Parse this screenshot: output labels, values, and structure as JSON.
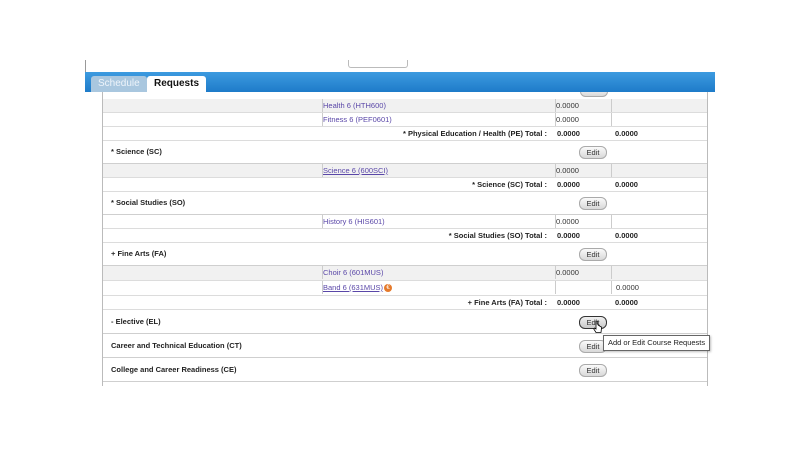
{
  "tabs": [
    {
      "label": "Schedule",
      "active": false
    },
    {
      "label": "Requests",
      "active": true
    }
  ],
  "pe_section": {
    "courses": [
      {
        "name": "Health 6 (HTH600)",
        "col1": "0.0000",
        "col2": ""
      },
      {
        "name": "Fitness 6 (PEF0601)",
        "col1": "0.0000",
        "col2": ""
      }
    ],
    "total_label": "* Physical Education / Health (PE) Total :",
    "total_col1": "0.0000",
    "total_col2": "0.0000"
  },
  "science_section": {
    "title": "* Science (SC)",
    "edit_label": "Edit",
    "courses": [
      {
        "name": "Science 6 (600SCI)",
        "col1": "0.0000",
        "col2": ""
      }
    ],
    "total_label": "* Science (SC) Total :",
    "total_col1": "0.0000",
    "total_col2": "0.0000"
  },
  "social_section": {
    "title": "* Social Studies (SO)",
    "edit_label": "Edit",
    "courses": [
      {
        "name": "History 6 (HIS601)",
        "col1": "0.0000",
        "col2": ""
      }
    ],
    "total_label": "* Social Studies (SO) Total :",
    "total_col1": "0.0000",
    "total_col2": "0.0000"
  },
  "finearts_section": {
    "title": "+ Fine Arts (FA)",
    "edit_label": "Edit",
    "courses": [
      {
        "name": "Choir 6 (601MUS)",
        "col1": "0.0000",
        "col2": ""
      },
      {
        "name": "Band 6 (631MUS)",
        "col1": "",
        "col2": "0.0000"
      }
    ],
    "total_label": "+ Fine Arts (FA) Total :",
    "total_col1": "0.0000",
    "total_col2": "0.0000"
  },
  "elective_section": {
    "title": "- Elective (EL)",
    "edit_label": "Edit"
  },
  "cte_section": {
    "title": "Career and Technical Education (CT)",
    "edit_label": "Edit"
  },
  "ccr_section": {
    "title": "College and Career Readiness (CE)",
    "edit_label": "Edit"
  },
  "tooltip": "Add or Edit Course Requests",
  "icons": {
    "drop_icon_glyph": "€"
  },
  "colors": {
    "tab_bar": "#1e7bc9",
    "link": "#5a47a8",
    "drop_icon": "#e57a2c"
  }
}
